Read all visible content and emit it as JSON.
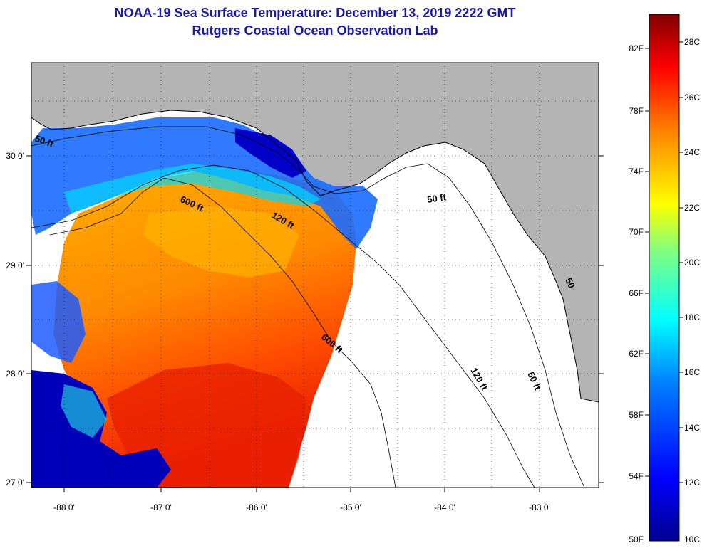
{
  "header": {
    "title": "NOAA-19 Sea Surface Temperature:  December 13, 2019 2222 GMT",
    "subtitle": "Rutgers Coastal Ocean Observation Lab"
  },
  "map": {
    "lon_labels": [
      "-88 0'",
      "-87 0'",
      "-86 0'",
      "-85 0'",
      "-84 0'",
      "-83 0'"
    ],
    "lat_labels": [
      "30 0'",
      "29 0'",
      "28 0'",
      "27 0'"
    ],
    "lon_range": [
      -88.3,
      -82.5
    ],
    "lat_range": [
      26.95,
      30.85
    ],
    "land_color": "#b4b4b4",
    "contour_labels": [
      "50 ft",
      "600 ft",
      "120 ft",
      "50 ft",
      "600 ft",
      "120 ft",
      "50 ft",
      "50"
    ]
  },
  "colorbar": {
    "fahrenheit_labels": [
      "82F",
      "78F",
      "74F",
      "70F",
      "66F",
      "62F",
      "58F",
      "54F",
      "50F"
    ],
    "celsius_labels": [
      "28C",
      "26C",
      "24C",
      "22C",
      "20C",
      "18C",
      "16C",
      "14C",
      "12C",
      "10C"
    ],
    "range_c": [
      10,
      29.5
    ],
    "colors": [
      "#00008f",
      "#0000ff",
      "#0080ff",
      "#00ffff",
      "#80ff80",
      "#ffff00",
      "#ff8000",
      "#ff0000",
      "#800000"
    ]
  }
}
